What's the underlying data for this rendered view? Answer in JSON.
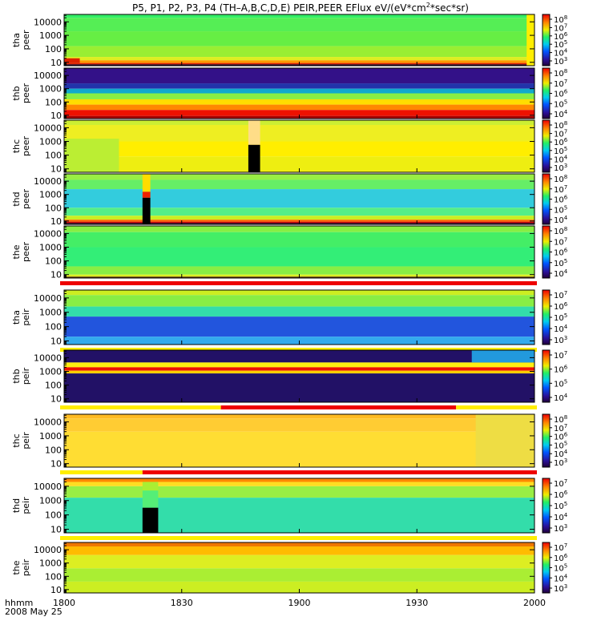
{
  "chart_data": {
    "type": "heatmap",
    "title_parts": [
      "P5, P1, P2, P3, P4 (TH–A,B,C,D,E) PEIR,PEER EFlux eV/(eV*cm",
      "2",
      "*sec*sr)"
    ],
    "x_ticks": [
      "1800",
      "1830",
      "1900",
      "1930",
      "2000"
    ],
    "x_tick_minutes": [
      0,
      30,
      60,
      90,
      120
    ],
    "x_range_minutes": [
      0,
      120
    ],
    "x_label_line1": "hhmm",
    "x_label_line2": "2008 May 25",
    "y_ticks": [
      "10",
      "100",
      "1000",
      "10000"
    ],
    "y_log_values": [
      1,
      2,
      3,
      4
    ],
    "y_log_range": [
      0.75,
      4.55
    ],
    "panels": [
      {
        "probe": "tha",
        "species": "peer",
        "cbar": [
          [
            "10",
            "8"
          ],
          [
            "10",
            "7"
          ],
          [
            "10",
            "6"
          ],
          [
            "10",
            "5"
          ],
          [
            "10",
            "4"
          ],
          [
            "10",
            "3"
          ]
        ],
        "bands": [
          [
            4.3,
            4.55,
            "#33ee66"
          ],
          [
            3.3,
            4.3,
            "#55ee55"
          ],
          [
            2.2,
            3.3,
            "#66ee44"
          ],
          [
            1.4,
            2.2,
            "#99ee33"
          ],
          [
            1.15,
            1.4,
            "#ddee22"
          ],
          [
            0.95,
            1.15,
            "#ff9900"
          ],
          [
            0.85,
            0.95,
            "#dd2200"
          ],
          [
            0.75,
            0.85,
            "#220022"
          ]
        ],
        "blocks": [
          [
            0,
            4,
            0.95,
            1.3,
            "#dd2200"
          ],
          [
            118,
            120,
            0.75,
            4.55,
            "#ffee00"
          ]
        ],
        "bar": null
      },
      {
        "probe": "thb",
        "species": "peer",
        "cbar": [
          [
            "10",
            "8"
          ],
          [
            "10",
            "7"
          ],
          [
            "10",
            "6"
          ],
          [
            "10",
            "5"
          ],
          [
            "10",
            "4"
          ]
        ],
        "bands": [
          [
            3.4,
            4.55,
            "#331188"
          ],
          [
            3.0,
            3.4,
            "#2233aa"
          ],
          [
            2.65,
            3.0,
            "#11aacc"
          ],
          [
            2.2,
            2.65,
            "#88ee44"
          ],
          [
            1.8,
            2.2,
            "#ffdd00"
          ],
          [
            1.4,
            1.8,
            "#ff8800"
          ],
          [
            0.95,
            1.4,
            "#ee1100"
          ],
          [
            0.75,
            0.95,
            "#aa0000"
          ]
        ],
        "blocks": [],
        "bar": null
      },
      {
        "probe": "thc",
        "species": "peer",
        "cbar": [
          [
            "10",
            "8"
          ],
          [
            "10",
            "7"
          ],
          [
            "10",
            "6"
          ],
          [
            "10",
            "5"
          ],
          [
            "10",
            "4"
          ],
          [
            "10",
            "3"
          ]
        ],
        "bands": [
          [
            4.2,
            4.55,
            "#ccee33"
          ],
          [
            3.0,
            4.2,
            "#eeee22"
          ],
          [
            1.9,
            3.0,
            "#ffee00"
          ],
          [
            0.75,
            1.9,
            "#eeee11"
          ]
        ],
        "blocks": [
          [
            0,
            14,
            0.75,
            3.2,
            "#bbee33"
          ],
          [
            47,
            50,
            2.75,
            4.55,
            "#ffdd88"
          ],
          [
            47,
            50,
            0.75,
            2.75,
            "#000000"
          ]
        ],
        "bar": null
      },
      {
        "probe": "thd",
        "species": "peer",
        "cbar": [
          [
            "10",
            "8"
          ],
          [
            "10",
            "7"
          ],
          [
            "10",
            "6"
          ],
          [
            "10",
            "5"
          ],
          [
            "10",
            "4"
          ]
        ],
        "bands": [
          [
            4.1,
            4.55,
            "#99ee44"
          ],
          [
            3.4,
            4.1,
            "#66ee66"
          ],
          [
            2.0,
            3.4,
            "#33ccdd"
          ],
          [
            1.4,
            2.0,
            "#55ee88"
          ],
          [
            1.1,
            1.4,
            "#ccee22"
          ],
          [
            0.95,
            1.1,
            "#ff6600"
          ],
          [
            0.85,
            0.95,
            "#cc0000"
          ],
          [
            0.75,
            0.85,
            "#220022"
          ]
        ],
        "blocks": [
          [
            20,
            22,
            3.2,
            4.55,
            "#ffdd00"
          ],
          [
            20,
            22,
            2.75,
            3.2,
            "#ee2200"
          ],
          [
            20,
            22,
            0.75,
            2.75,
            "#000000"
          ]
        ],
        "bar": null
      },
      {
        "probe": "the",
        "species": "peer",
        "cbar": [
          [
            "10",
            "8"
          ],
          [
            "10",
            "7"
          ],
          [
            "10",
            "6"
          ],
          [
            "10",
            "5"
          ],
          [
            "10",
            "4"
          ]
        ],
        "bands": [
          [
            4.1,
            4.55,
            "#88ee44"
          ],
          [
            3.0,
            4.1,
            "#44ee66"
          ],
          [
            1.6,
            3.0,
            "#33ee77"
          ],
          [
            1.0,
            1.6,
            "#88ee44"
          ],
          [
            0.85,
            1.0,
            "#ddee22"
          ],
          [
            0.75,
            0.85,
            "#553300"
          ]
        ],
        "blocks": [],
        "bar": [
          [
            0,
            120,
            "#ee0000"
          ]
        ]
      },
      {
        "probe": "tha",
        "species": "peir",
        "cbar": [
          [
            "10",
            "7"
          ],
          [
            "10",
            "6"
          ],
          [
            "10",
            "5"
          ],
          [
            "10",
            "4"
          ],
          [
            "10",
            "3"
          ]
        ],
        "bands": [
          [
            4.2,
            4.55,
            "#ccee22"
          ],
          [
            3.4,
            4.2,
            "#88ee44"
          ],
          [
            2.7,
            3.4,
            "#33ddaa"
          ],
          [
            1.3,
            2.7,
            "#2255dd"
          ],
          [
            0.75,
            1.3,
            "#33aaee"
          ]
        ],
        "blocks": [],
        "bar": [
          [
            0,
            120,
            "#ffee00"
          ]
        ]
      },
      {
        "probe": "thb",
        "species": "peir",
        "cbar": [
          [
            "10",
            "7"
          ],
          [
            "10",
            "6"
          ],
          [
            "10",
            "5"
          ],
          [
            "10",
            "4"
          ]
        ],
        "bands": [
          [
            3.65,
            4.55,
            "#221166"
          ],
          [
            3.3,
            3.65,
            "#ffee11"
          ],
          [
            3.05,
            3.3,
            "#ee1100"
          ],
          [
            2.85,
            3.05,
            "#ffcc00"
          ],
          [
            0.75,
            2.85,
            "#221166"
          ]
        ],
        "blocks": [
          [
            104,
            120,
            3.65,
            4.55,
            "#2299dd"
          ]
        ],
        "bar": [
          [
            0,
            40,
            "#ffee00"
          ],
          [
            40,
            100,
            "#ee0000"
          ],
          [
            100,
            120,
            "#ffee00"
          ]
        ]
      },
      {
        "probe": "thc",
        "species": "peir",
        "cbar": [
          [
            "10",
            "8"
          ],
          [
            "10",
            "7"
          ],
          [
            "10",
            "6"
          ],
          [
            "10",
            "5"
          ],
          [
            "10",
            "4"
          ],
          [
            "10",
            "3"
          ]
        ],
        "bands": [
          [
            4.25,
            4.55,
            "#ffbb22"
          ],
          [
            3.3,
            4.25,
            "#ffcc33"
          ],
          [
            0.75,
            3.3,
            "#ffdd33"
          ]
        ],
        "blocks": [
          [
            105,
            120,
            0.75,
            4.55,
            "#eedd44"
          ]
        ],
        "bar": [
          [
            0,
            20,
            "#ffee00"
          ],
          [
            20,
            120,
            "#ee0000"
          ]
        ]
      },
      {
        "probe": "thd",
        "species": "peir",
        "cbar": [
          [
            "10",
            "7"
          ],
          [
            "10",
            "6"
          ],
          [
            "10",
            "5"
          ],
          [
            "10",
            "4"
          ],
          [
            "10",
            "3"
          ]
        ],
        "bands": [
          [
            4.3,
            4.55,
            "#ff8800"
          ],
          [
            4.0,
            4.3,
            "#ffdd22"
          ],
          [
            3.2,
            4.0,
            "#99ee44"
          ],
          [
            0.75,
            3.2,
            "#33ddaa"
          ]
        ],
        "blocks": [
          [
            20,
            24,
            3.7,
            4.3,
            "#aaee33"
          ],
          [
            20,
            24,
            2.5,
            3.7,
            "#55ee77"
          ],
          [
            20,
            24,
            0.75,
            2.5,
            "#000000"
          ]
        ],
        "bar": [
          [
            0,
            120,
            "#ffee00"
          ]
        ]
      },
      {
        "probe": "the",
        "species": "peir",
        "cbar": [
          [
            "10",
            "7"
          ],
          [
            "10",
            "6"
          ],
          [
            "10",
            "5"
          ],
          [
            "10",
            "4"
          ],
          [
            "10",
            "3"
          ]
        ],
        "bands": [
          [
            4.25,
            4.55,
            "#ee7700"
          ],
          [
            3.6,
            4.25,
            "#ffbb00"
          ],
          [
            2.6,
            3.6,
            "#ddee22"
          ],
          [
            1.6,
            2.6,
            "#aaee33"
          ],
          [
            0.75,
            1.6,
            "#ccee22"
          ]
        ],
        "blocks": [],
        "bar": null
      }
    ]
  }
}
